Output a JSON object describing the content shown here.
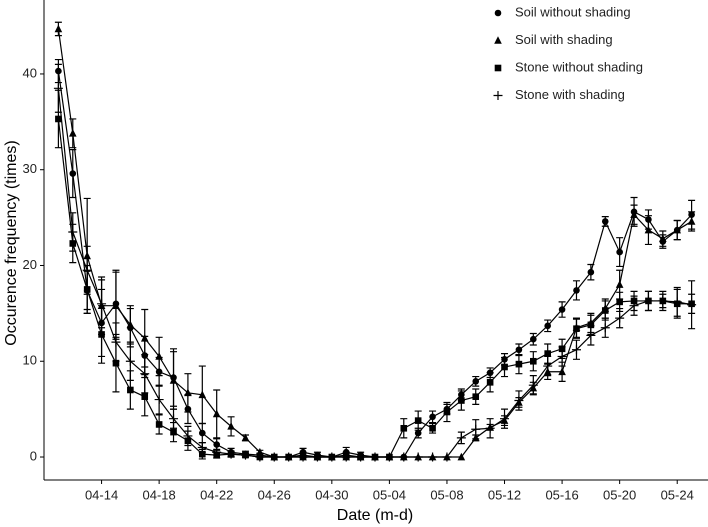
{
  "chart_data": {
    "type": "line",
    "xlabel": "Date (m-d)",
    "ylabel": "Occurence frequency (times)",
    "x": [
      "04-11",
      "04-12",
      "04-13",
      "04-14",
      "04-15",
      "04-16",
      "04-17",
      "04-18",
      "04-19",
      "04-20",
      "04-21",
      "04-22",
      "04-23",
      "04-24",
      "04-25",
      "04-26",
      "04-27",
      "04-28",
      "04-29",
      "04-30",
      "05-01",
      "05-02",
      "05-03",
      "05-04",
      "05-05",
      "05-06",
      "05-07",
      "05-08",
      "05-09",
      "05-10",
      "05-11",
      "05-12",
      "05-13",
      "05-14",
      "05-15",
      "05-16",
      "05-17",
      "05-18",
      "05-19",
      "05-20",
      "05-21",
      "05-22",
      "05-23",
      "05-24",
      "05-25"
    ],
    "xlim": [
      "04-10",
      "05-26"
    ],
    "xticks": [
      "04-14",
      "04-18",
      "04-22",
      "04-26",
      "04-30",
      "05-04",
      "05-08",
      "05-12",
      "05-16",
      "05-20",
      "05-24"
    ],
    "ylim": [
      -2.4,
      47.2
    ],
    "yticks": [
      0,
      10,
      20,
      30,
      40
    ],
    "grid": false,
    "legend": "top-right",
    "series": [
      {
        "name": "Soil without shading",
        "color": "#000000",
        "marker": "circle",
        "values": [
          40.3,
          29.6,
          17.4,
          14,
          16,
          13.5,
          10.6,
          8.9,
          8.3,
          5,
          2.5,
          1.3,
          0.5,
          0.3,
          0.2,
          0,
          0,
          0.5,
          0.2,
          0,
          0.5,
          0.2,
          0,
          0,
          0,
          2.5,
          4.2,
          5,
          6.5,
          7.9,
          8.8,
          10.2,
          11.2,
          12.3,
          13.7,
          15.4,
          17.4,
          19.3,
          24.6,
          21.4,
          25.6,
          24.8,
          22.5,
          23.7,
          25.3
        ],
        "errors": [
          1.2,
          2.5,
          2,
          3.5,
          3.5,
          2,
          2,
          1.5,
          3,
          1.5,
          1,
          0.6,
          0.4,
          0.3,
          0.2,
          0,
          0,
          0.4,
          0.3,
          0,
          0.5,
          0.3,
          0,
          0,
          0,
          0.5,
          0.6,
          0.5,
          0.6,
          0.5,
          0.5,
          0.6,
          0.6,
          0.6,
          0.6,
          0.8,
          1,
          0.8,
          0.5,
          1.5,
          1.5,
          1,
          0.7,
          1,
          1.5
        ]
      },
      {
        "name": "Soil with shading",
        "color": "#000000",
        "marker": "triangle",
        "values": [
          44.7,
          33.8,
          21,
          15.8,
          15.8,
          13.8,
          12.4,
          10.5,
          8,
          6.7,
          6.5,
          4.5,
          3.2,
          2,
          0.5,
          0,
          0,
          0,
          0,
          0,
          0,
          0,
          0,
          0,
          0,
          0,
          0,
          0,
          0,
          2,
          3.1,
          3.8,
          5.7,
          7.2,
          8.9,
          8.9,
          13.5,
          14,
          15.5,
          18,
          25.3,
          23.7,
          22.8,
          23.7,
          24.6
        ],
        "errors": [
          0.7,
          1.5,
          6,
          3,
          3.5,
          2,
          3,
          2,
          3,
          2,
          3,
          2.5,
          1,
          0.3,
          0.2,
          0,
          0,
          0,
          0,
          0,
          0,
          0,
          0,
          0,
          0,
          0,
          0,
          0,
          0,
          0.3,
          0.3,
          0.5,
          0.5,
          0.6,
          0.8,
          1,
          1,
          1,
          1,
          1.5,
          1,
          1.5,
          0.8,
          1,
          1
        ]
      },
      {
        "name": "Stone without shading",
        "color": "#000000",
        "marker": "square",
        "values": [
          35.3,
          22.3,
          17.5,
          12.8,
          9.8,
          7,
          6.3,
          3.4,
          2.6,
          1.7,
          0.3,
          0.2,
          0.3,
          0.2,
          0,
          0,
          0,
          0.2,
          0,
          0,
          0.2,
          0,
          0,
          0,
          3,
          3.8,
          3,
          4.7,
          5.9,
          6.3,
          7.8,
          9.4,
          9.7,
          10,
          10.8,
          11.3,
          13.4,
          13.8,
          15.3,
          16.2,
          16.3,
          16.3,
          16.3,
          16,
          16
        ],
        "errors": [
          3,
          2,
          2.5,
          3,
          3,
          2,
          2,
          1,
          1,
          1,
          0.5,
          0.3,
          0.3,
          0.2,
          0,
          0,
          0,
          0.3,
          0,
          0,
          0.3,
          0,
          0,
          0,
          1,
          1,
          0.5,
          1,
          1,
          0.8,
          1,
          1,
          1,
          1,
          1,
          1,
          1,
          1,
          1,
          1,
          1,
          1,
          0.7,
          1.5,
          1
        ]
      },
      {
        "name": "Stone with shading",
        "color": "#000000",
        "marker": "plus",
        "values": [
          38.5,
          23.5,
          19.5,
          16,
          12,
          10,
          8.7,
          6,
          4,
          2.2,
          1,
          0.5,
          0.3,
          0.2,
          0,
          0,
          0,
          0,
          0,
          0,
          0,
          0,
          0,
          0,
          0,
          0,
          0,
          0,
          2,
          2.9,
          3,
          4,
          5.9,
          7.5,
          9.5,
          10.5,
          11.2,
          12.7,
          13.5,
          14.5,
          15.8,
          16.3,
          16.3,
          16.2,
          15.9
        ],
        "errors": [
          2.5,
          2,
          2.5,
          2.5,
          2,
          2,
          2,
          1.5,
          1,
          1,
          0.5,
          0.3,
          0.3,
          0.2,
          0,
          0,
          0,
          0,
          0,
          0,
          0,
          0,
          0,
          0,
          0,
          0,
          0,
          0,
          0.6,
          1,
          1,
          1,
          1,
          1,
          1,
          1,
          1,
          1,
          1,
          1,
          1,
          1,
          1,
          1.5,
          2.5
        ]
      }
    ]
  }
}
